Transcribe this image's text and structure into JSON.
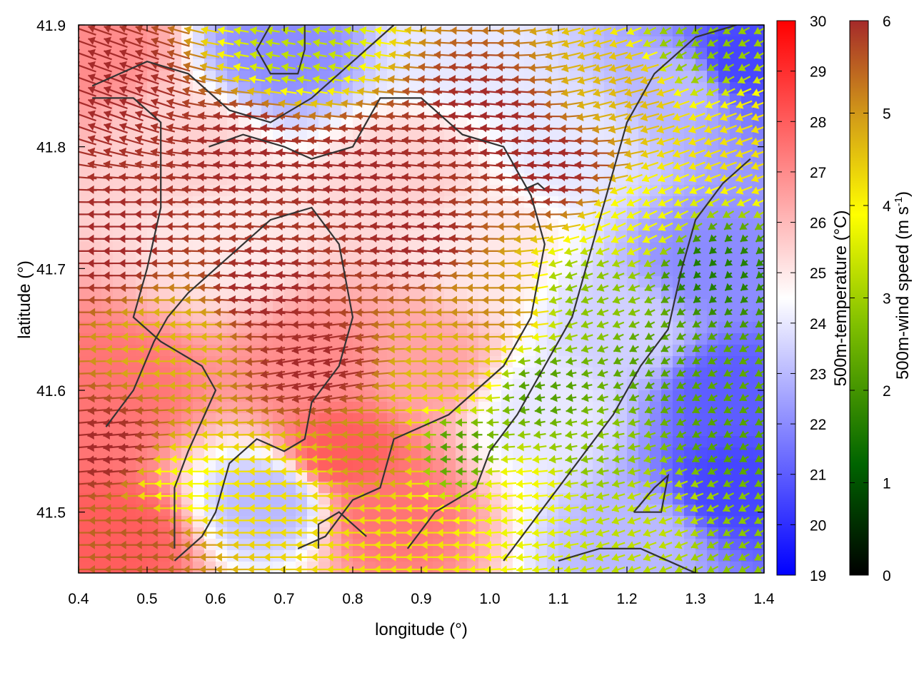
{
  "chart_data": {
    "type": "heatmap",
    "title": "",
    "xlabel": "longitude (°)",
    "ylabel": "latitude (°)",
    "xlim": [
      0.4,
      1.4
    ],
    "ylim": [
      41.45,
      41.9
    ],
    "x_ticks": [
      "0.4",
      "0.5",
      "0.6",
      "0.7",
      "0.8",
      "0.9",
      "1.0",
      "1.1",
      "1.2",
      "1.3",
      "1.4"
    ],
    "y_ticks": [
      "41.5",
      "41.6",
      "41.7",
      "41.8",
      "41.9"
    ],
    "temperature_colorbar": {
      "label": "500m-temperature (°C)",
      "range": [
        19,
        30
      ],
      "ticks": [
        "19",
        "20",
        "21",
        "22",
        "23",
        "24",
        "25",
        "26",
        "27",
        "28",
        "29",
        "30"
      ],
      "colors": {
        "low": "#0000ff",
        "mid": "#ffffff",
        "high": "#ff0000"
      }
    },
    "wind_colorbar": {
      "label_main": "500m-wind speed (m s",
      "label_sup": "-1",
      "label_end": ")",
      "range": [
        0,
        6
      ],
      "ticks": [
        "0",
        "1",
        "2",
        "3",
        "4",
        "5",
        "6"
      ],
      "colors": [
        "#000000",
        "#006400",
        "#7fbf00",
        "#ffff00",
        "#d4a017",
        "#a52a2a"
      ]
    },
    "temperature_field": [
      {
        "lon": 0.42,
        "lat": 41.88,
        "t": 27.0
      },
      {
        "lon": 0.45,
        "lat": 41.6,
        "t": 27.5
      },
      {
        "lon": 0.45,
        "lat": 41.48,
        "t": 28.0
      },
      {
        "lon": 0.55,
        "lat": 41.8,
        "t": 25.5
      },
      {
        "lon": 0.62,
        "lat": 41.72,
        "t": 25.0
      },
      {
        "lon": 0.7,
        "lat": 41.88,
        "t": 22.0
      },
      {
        "lon": 0.68,
        "lat": 41.51,
        "t": 23.0
      },
      {
        "lon": 0.75,
        "lat": 41.62,
        "t": 27.0
      },
      {
        "lon": 0.78,
        "lat": 41.55,
        "t": 28.0
      },
      {
        "lon": 0.85,
        "lat": 41.5,
        "t": 27.5
      },
      {
        "lon": 0.88,
        "lat": 41.78,
        "t": 25.5
      },
      {
        "lon": 0.9,
        "lat": 41.62,
        "t": 26.5
      },
      {
        "lon": 0.95,
        "lat": 41.88,
        "t": 24.0
      },
      {
        "lon": 1.0,
        "lat": 41.72,
        "t": 25.0
      },
      {
        "lon": 1.08,
        "lat": 41.58,
        "t": 24.0
      },
      {
        "lon": 1.12,
        "lat": 41.8,
        "t": 24.0
      },
      {
        "lon": 1.2,
        "lat": 41.65,
        "t": 23.5
      },
      {
        "lon": 1.22,
        "lat": 41.48,
        "t": 23.0
      },
      {
        "lon": 1.28,
        "lat": 41.85,
        "t": 23.0
      },
      {
        "lon": 1.32,
        "lat": 41.7,
        "t": 22.0
      },
      {
        "lon": 1.36,
        "lat": 41.87,
        "t": 20.5
      },
      {
        "lon": 1.35,
        "lat": 41.6,
        "t": 21.0
      },
      {
        "lon": 1.35,
        "lat": 41.52,
        "t": 20.5
      }
    ],
    "wind_field": [
      {
        "lon": 0.45,
        "lat": 41.85,
        "speed": 6.0,
        "dir_deg": 160
      },
      {
        "lon": 0.45,
        "lat": 41.72,
        "speed": 6.0,
        "dir_deg": 180
      },
      {
        "lon": 0.45,
        "lat": 41.55,
        "speed": 6.0,
        "dir_deg": 185
      },
      {
        "lon": 0.5,
        "lat": 41.48,
        "speed": 5.5,
        "dir_deg": 180
      },
      {
        "lon": 0.55,
        "lat": 41.64,
        "speed": 4.5,
        "dir_deg": 180
      },
      {
        "lon": 0.55,
        "lat": 41.52,
        "speed": 3.5,
        "dir_deg": 180
      },
      {
        "lon": 0.65,
        "lat": 41.8,
        "speed": 6.0,
        "dir_deg": 175
      },
      {
        "lon": 0.68,
        "lat": 41.68,
        "speed": 6.0,
        "dir_deg": 175
      },
      {
        "lon": 0.7,
        "lat": 41.52,
        "speed": 4.0,
        "dir_deg": 180
      },
      {
        "lon": 0.72,
        "lat": 41.88,
        "speed": 3.0,
        "dir_deg": 170
      },
      {
        "lon": 0.75,
        "lat": 41.62,
        "speed": 6.0,
        "dir_deg": 190
      },
      {
        "lon": 0.82,
        "lat": 41.78,
        "speed": 6.0,
        "dir_deg": 175
      },
      {
        "lon": 0.85,
        "lat": 41.55,
        "speed": 5.0,
        "dir_deg": 180
      },
      {
        "lon": 0.88,
        "lat": 41.48,
        "speed": 4.0,
        "dir_deg": 180
      },
      {
        "lon": 0.9,
        "lat": 41.72,
        "speed": 6.0,
        "dir_deg": 175
      },
      {
        "lon": 0.95,
        "lat": 41.62,
        "speed": 4.5,
        "dir_deg": 180
      },
      {
        "lon": 0.95,
        "lat": 41.55,
        "speed": 2.0,
        "dir_deg": 180
      },
      {
        "lon": 1.0,
        "lat": 41.82,
        "speed": 6.0,
        "dir_deg": 175
      },
      {
        "lon": 1.0,
        "lat": 41.67,
        "speed": 5.0,
        "dir_deg": 180
      },
      {
        "lon": 1.05,
        "lat": 41.52,
        "speed": 3.5,
        "dir_deg": 185
      },
      {
        "lon": 1.08,
        "lat": 41.6,
        "speed": 2.0,
        "dir_deg": 190
      },
      {
        "lon": 1.1,
        "lat": 41.78,
        "speed": 6.0,
        "dir_deg": 175
      },
      {
        "lon": 1.15,
        "lat": 41.68,
        "speed": 2.5,
        "dir_deg": 200
      },
      {
        "lon": 1.15,
        "lat": 41.55,
        "speed": 2.5,
        "dir_deg": 190
      },
      {
        "lon": 1.2,
        "lat": 41.85,
        "speed": 4.5,
        "dir_deg": 195
      },
      {
        "lon": 1.22,
        "lat": 41.74,
        "speed": 3.5,
        "dir_deg": 205
      },
      {
        "lon": 1.25,
        "lat": 41.62,
        "speed": 2.0,
        "dir_deg": 210
      },
      {
        "lon": 1.25,
        "lat": 41.5,
        "speed": 3.0,
        "dir_deg": 200
      },
      {
        "lon": 1.3,
        "lat": 41.88,
        "speed": 2.5,
        "dir_deg": 210
      },
      {
        "lon": 1.32,
        "lat": 41.7,
        "speed": 1.5,
        "dir_deg": 220
      },
      {
        "lon": 1.35,
        "lat": 41.56,
        "speed": 2.0,
        "dir_deg": 210
      },
      {
        "lon": 1.38,
        "lat": 41.8,
        "speed": 4.0,
        "dir_deg": 200
      },
      {
        "lon": 1.38,
        "lat": 41.48,
        "speed": 2.5,
        "dir_deg": 210
      }
    ],
    "contours": [
      [
        [
          0.42,
          41.85
        ],
        [
          0.5,
          41.87
        ],
        [
          0.56,
          41.86
        ],
        [
          0.62,
          41.83
        ],
        [
          0.68,
          41.82
        ],
        [
          0.74,
          41.84
        ],
        [
          0.78,
          41.86
        ],
        [
          0.82,
          41.88
        ],
        [
          0.86,
          41.9
        ]
      ],
      [
        [
          0.42,
          41.84
        ],
        [
          0.48,
          41.84
        ],
        [
          0.52,
          41.82
        ],
        [
          0.52,
          41.75
        ],
        [
          0.5,
          41.7
        ],
        [
          0.48,
          41.66
        ],
        [
          0.52,
          41.64
        ],
        [
          0.58,
          41.62
        ],
        [
          0.6,
          41.6
        ],
        [
          0.56,
          41.55
        ],
        [
          0.54,
          41.52
        ],
        [
          0.54,
          41.47
        ]
      ],
      [
        [
          0.59,
          41.8
        ],
        [
          0.64,
          41.81
        ],
        [
          0.7,
          41.8
        ],
        [
          0.74,
          41.79
        ],
        [
          0.8,
          41.8
        ],
        [
          0.84,
          41.84
        ],
        [
          0.9,
          41.84
        ],
        [
          0.96,
          41.81
        ],
        [
          1.02,
          41.8
        ],
        [
          1.06,
          41.76
        ],
        [
          1.08,
          41.72
        ],
        [
          1.06,
          41.66
        ],
        [
          1.02,
          41.62
        ],
        [
          0.98,
          41.6
        ],
        [
          0.94,
          41.58
        ],
        [
          0.9,
          41.57
        ],
        [
          0.86,
          41.56
        ],
        [
          0.84,
          41.52
        ],
        [
          0.8,
          41.51
        ],
        [
          0.76,
          41.48
        ],
        [
          0.72,
          41.47
        ]
      ],
      [
        [
          0.68,
          41.9
        ],
        [
          0.66,
          41.88
        ],
        [
          0.68,
          41.86
        ],
        [
          0.72,
          41.86
        ],
        [
          0.73,
          41.88
        ],
        [
          0.73,
          41.9
        ]
      ],
      [
        [
          0.44,
          41.57
        ],
        [
          0.48,
          41.6
        ],
        [
          0.51,
          41.64
        ],
        [
          0.53,
          41.66
        ],
        [
          0.56,
          41.68
        ],
        [
          0.6,
          41.7
        ],
        [
          0.64,
          41.72
        ],
        [
          0.68,
          41.74
        ],
        [
          0.74,
          41.75
        ],
        [
          0.78,
          41.72
        ],
        [
          0.8,
          41.66
        ],
        [
          0.78,
          41.62
        ],
        [
          0.74,
          41.59
        ],
        [
          0.73,
          41.56
        ],
        [
          0.7,
          41.55
        ],
        [
          0.66,
          41.56
        ],
        [
          0.62,
          41.54
        ],
        [
          0.6,
          41.5
        ],
        [
          0.58,
          41.48
        ],
        [
          0.54,
          41.46
        ]
      ],
      [
        [
          0.88,
          41.47
        ],
        [
          0.92,
          41.5
        ],
        [
          0.98,
          41.52
        ],
        [
          1.0,
          41.55
        ],
        [
          1.04,
          41.58
        ],
        [
          1.08,
          41.62
        ],
        [
          1.12,
          41.66
        ],
        [
          1.14,
          41.7
        ],
        [
          1.16,
          41.74
        ],
        [
          1.18,
          41.78
        ],
        [
          1.2,
          41.82
        ],
        [
          1.24,
          41.86
        ],
        [
          1.3,
          41.89
        ],
        [
          1.36,
          41.9
        ]
      ],
      [
        [
          1.02,
          41.46
        ],
        [
          1.06,
          41.49
        ],
        [
          1.1,
          41.52
        ],
        [
          1.14,
          41.55
        ],
        [
          1.18,
          41.58
        ],
        [
          1.22,
          41.62
        ],
        [
          1.26,
          41.65
        ],
        [
          1.28,
          41.7
        ],
        [
          1.3,
          41.74
        ],
        [
          1.34,
          41.77
        ],
        [
          1.38,
          41.79
        ]
      ],
      [
        [
          1.1,
          41.46
        ],
        [
          1.16,
          41.47
        ],
        [
          1.22,
          41.47
        ],
        [
          1.26,
          41.46
        ],
        [
          1.3,
          41.45
        ]
      ],
      [
        [
          1.21,
          41.5
        ],
        [
          1.25,
          41.5
        ],
        [
          1.26,
          41.53
        ],
        [
          1.24,
          41.52
        ],
        [
          1.21,
          41.5
        ]
      ],
      [
        [
          0.75,
          41.47
        ],
        [
          0.75,
          41.49
        ],
        [
          0.78,
          41.5
        ],
        [
          0.82,
          41.48
        ]
      ],
      [
        [
          1.05,
          41.765
        ],
        [
          1.07,
          41.77
        ],
        [
          1.08,
          41.765
        ]
      ]
    ]
  }
}
